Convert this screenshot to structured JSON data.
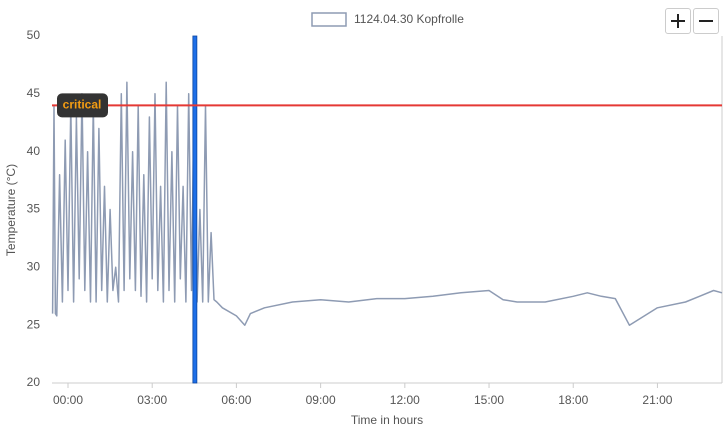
{
  "chart_data": {
    "type": "line",
    "legend": "1124.04.30 Kopfrolle",
    "xlabel": "Time in hours",
    "ylabel": "Temperature (°C)",
    "series": [
      {
        "name": "1124.04.30 Kopfrolle",
        "color": "#8e9bb3",
        "x": [
          -0.55,
          -0.5,
          -0.45,
          -0.4,
          -0.3,
          -0.2,
          -0.1,
          0,
          0.1,
          0.2,
          0.3,
          0.4,
          0.5,
          0.6,
          0.7,
          0.8,
          0.9,
          1.0,
          1.1,
          1.2,
          1.3,
          1.4,
          1.5,
          1.6,
          1.7,
          1.8,
          1.9,
          2.0,
          2.1,
          2.2,
          2.3,
          2.4,
          2.5,
          2.6,
          2.7,
          2.8,
          2.9,
          3.0,
          3.1,
          3.2,
          3.3,
          3.4,
          3.5,
          3.6,
          3.7,
          3.8,
          3.9,
          4.0,
          4.1,
          4.2,
          4.3,
          4.4,
          4.5,
          4.6,
          4.7,
          4.8,
          4.9,
          5.0,
          5.1,
          5.2,
          5.3,
          5.5,
          6.0,
          6.3,
          6.5,
          7,
          8,
          9,
          10,
          11,
          12,
          13,
          14,
          15,
          15.5,
          16,
          17,
          18,
          18.5,
          19,
          19.5,
          20,
          21,
          22,
          22.5,
          23,
          23.3
        ],
        "values": [
          26,
          44,
          26,
          25.8,
          38,
          27,
          41,
          28,
          44,
          27,
          43,
          29,
          45,
          28,
          40,
          27,
          44,
          27,
          42,
          28,
          37,
          27,
          35,
          28,
          30,
          27,
          45,
          28,
          46,
          29,
          40,
          28,
          44,
          27.5,
          38,
          27,
          43,
          29,
          45,
          28,
          37,
          27,
          46,
          28,
          40,
          27,
          44,
          29,
          37,
          27,
          45,
          28,
          46,
          27,
          35,
          27,
          44,
          27,
          33,
          27.2,
          27,
          26.5,
          25.8,
          25,
          26,
          26.5,
          27,
          27.2,
          27,
          27.3,
          27.3,
          27.5,
          27.8,
          28,
          27.2,
          27,
          27,
          27.5,
          27.8,
          27.5,
          27.3,
          25,
          26.5,
          27,
          27.5,
          28,
          27.8
        ]
      }
    ],
    "xlim": [
      -0.57,
      23.3
    ],
    "ylim": [
      20,
      50
    ],
    "xticks": [
      {
        "value": 0,
        "label": "00:00"
      },
      {
        "value": 3,
        "label": "03:00"
      },
      {
        "value": 6,
        "label": "06:00"
      },
      {
        "value": 9,
        "label": "09:00"
      },
      {
        "value": 12,
        "label": "12:00"
      },
      {
        "value": 15,
        "label": "15:00"
      },
      {
        "value": 18,
        "label": "18:00"
      },
      {
        "value": 21,
        "label": "21:00"
      }
    ],
    "yticks": [
      20,
      25,
      30,
      35,
      40,
      45,
      50
    ],
    "threshold": {
      "label": "critical",
      "value": 44,
      "color": "#e53935"
    },
    "cursor": {
      "x": 4.52,
      "color": "#1e6fe8"
    }
  }
}
